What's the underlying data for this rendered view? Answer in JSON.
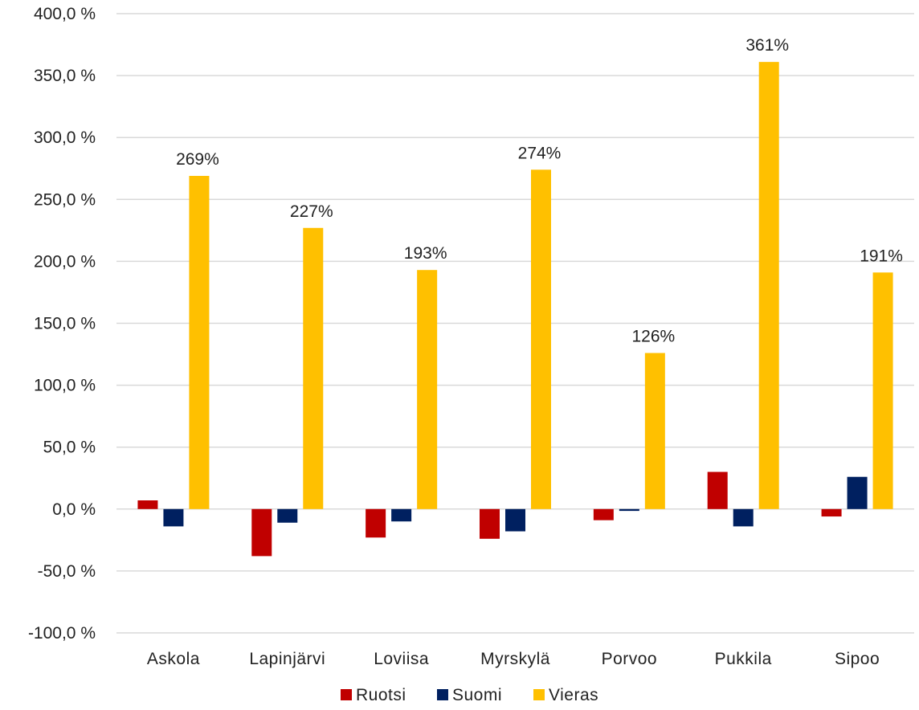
{
  "chart_data": {
    "type": "bar",
    "categories": [
      "Askola",
      "Lapinjärvi",
      "Loviisa",
      "Myrskylä",
      "Porvoo",
      "Pukkila",
      "Sipoo"
    ],
    "series": [
      {
        "name": "Ruotsi",
        "color": "#c00000",
        "values": [
          7,
          -38,
          -23,
          -24,
          -9,
          30,
          -6
        ]
      },
      {
        "name": "Suomi",
        "color": "#002060",
        "values": [
          -14,
          -11,
          -10,
          -18,
          -1.5,
          -14,
          26
        ]
      },
      {
        "name": "Vieras",
        "color": "#ffc000",
        "values": [
          269,
          227,
          193,
          274,
          126,
          361,
          191
        ],
        "data_labels": [
          "269%",
          "227%",
          "193%",
          "274%",
          "126%",
          "361%",
          "191%"
        ]
      }
    ],
    "ylim": [
      -100,
      400
    ],
    "yticks": [
      400,
      350,
      300,
      250,
      200,
      150,
      100,
      50,
      0,
      -50,
      -100
    ],
    "ytick_labels": [
      "400,0 %",
      "350,0 %",
      "300,0 %",
      "250,0 %",
      "200,0 %",
      "150,0 %",
      "100,0 %",
      "50,0 %",
      "0,0 %",
      "-50,0 %",
      "-100,0 %"
    ],
    "grid": true,
    "legend": "bottom",
    "title": "",
    "xlabel": "",
    "ylabel": ""
  }
}
